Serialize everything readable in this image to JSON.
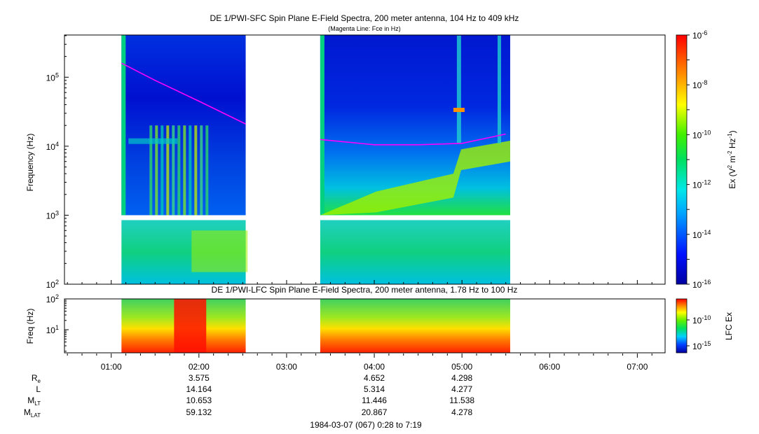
{
  "title": "DE 1/PWI-SFC  Spin Plane E-Field Spectra, 200 meter antenna, 104 Hz to 409 kHz",
  "subtitle": "(Magenta Line: Fce in Hz)",
  "panel2_title": "DE 1/PWI-LFC  Spin Plane E-Field Spectra, 200 meter antenna, 1.78 Hz to 100 Hz",
  "footer": "1984-03-07 (067) 0:28 to 7:19",
  "chart_data": [
    {
      "type": "heatmap",
      "name": "SFC",
      "xlabel": "",
      "ylabel": "Frequency (Hz)",
      "yscale": "log",
      "ylim": [
        100,
        409000
      ],
      "y_ticks": [
        {
          "v": 100,
          "b": "10",
          "e": "2"
        },
        {
          "v": 1000,
          "b": "10",
          "e": "3"
        },
        {
          "v": 10000,
          "b": "10",
          "e": "4"
        },
        {
          "v": 100000,
          "b": "10",
          "e": "5"
        }
      ],
      "colorbar": {
        "label_main": "Ex (V",
        "label_sup1": "2",
        "label_mid": " m",
        "label_sup2": "-2",
        "label_mid2": " Hz",
        "label_sup3": "-1",
        "label_end": ")",
        "scale": "log",
        "range": [
          1e-16,
          1e-06
        ],
        "ticks": [
          {
            "v": 1e-16,
            "b": "10",
            "e": "-16"
          },
          {
            "v": 1e-14,
            "b": "10",
            "e": "-14"
          },
          {
            "v": 1e-12,
            "b": "10",
            "e": "-12"
          },
          {
            "v": 1e-10,
            "b": "10",
            "e": "-10"
          },
          {
            "v": 1e-08,
            "b": "10",
            "e": "-8"
          },
          {
            "v": 1e-06,
            "b": "10",
            "e": "-6"
          }
        ]
      },
      "data_intervals": [
        {
          "start": "01:07",
          "end": "02:32"
        },
        {
          "start": "03:23",
          "end": "05:33"
        }
      ],
      "fce_line": [
        {
          "t": "01:07",
          "f": 160000
        },
        {
          "t": "01:30",
          "f": 90000
        },
        {
          "t": "02:00",
          "f": 45000
        },
        {
          "t": "02:32",
          "f": 21000
        },
        {
          "t": "03:23",
          "f": 12500
        },
        {
          "t": "04:00",
          "f": 10500
        },
        {
          "t": "04:30",
          "f": 10500
        },
        {
          "t": "05:00",
          "f": 11000
        },
        {
          "t": "05:30",
          "f": 15000
        }
      ]
    },
    {
      "type": "heatmap",
      "name": "LFC",
      "ylabel": "Freq (Hz)",
      "yscale": "log",
      "ylim": [
        1.78,
        100
      ],
      "y_ticks": [
        {
          "v": 10,
          "b": "10",
          "e": "1"
        },
        {
          "v": 100,
          "b": "10",
          "e": "2"
        }
      ],
      "colorbar": {
        "label": "LFC Ex",
        "ticks": [
          {
            "v": 1e-15,
            "b": "10",
            "e": "-15"
          },
          {
            "v": 1e-10,
            "b": "10",
            "e": "-10"
          }
        ]
      },
      "data_intervals": [
        {
          "start": "01:07",
          "end": "02:32"
        },
        {
          "start": "03:23",
          "end": "05:33"
        }
      ]
    }
  ],
  "x_axis": {
    "range": [
      "00:28",
      "07:19"
    ],
    "ticks": [
      "01:00",
      "02:00",
      "03:00",
      "04:00",
      "05:00",
      "06:00",
      "07:00"
    ]
  },
  "ephemeris": {
    "rows": [
      {
        "label": "R",
        "sub": "e",
        "values": [
          {
            "t": "02:00",
            "v": "3.575"
          },
          {
            "t": "04:00",
            "v": "4.652"
          },
          {
            "t": "05:00",
            "v": "4.298"
          }
        ]
      },
      {
        "label": "L",
        "sub": "",
        "values": [
          {
            "t": "02:00",
            "v": "14.164"
          },
          {
            "t": "04:00",
            "v": "5.314"
          },
          {
            "t": "05:00",
            "v": "4.277"
          }
        ]
      },
      {
        "label": "M",
        "sub": "LT",
        "values": [
          {
            "t": "02:00",
            "v": "10.653"
          },
          {
            "t": "04:00",
            "v": "11.446"
          },
          {
            "t": "05:00",
            "v": "11.538"
          }
        ]
      },
      {
        "label": "M",
        "sub": "LAT",
        "values": [
          {
            "t": "02:00",
            "v": "59.132"
          },
          {
            "t": "04:00",
            "v": "20.867"
          },
          {
            "t": "05:00",
            "v": "4.278"
          }
        ]
      }
    ]
  }
}
